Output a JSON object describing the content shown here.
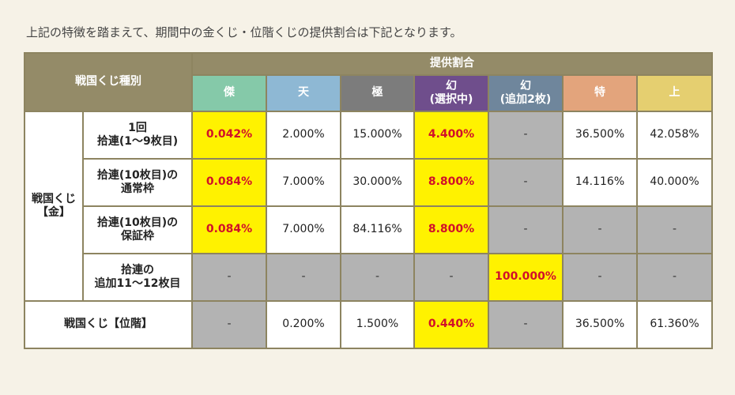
{
  "intro": "上記の特徴を踏まえて、期間中の金くじ・位階くじの提供割合は下記となります。",
  "header": {
    "type_label": "戦国くじ種別",
    "rate_label": "提供割合",
    "ranks": [
      {
        "label": "傑",
        "color": "#85c9a9"
      },
      {
        "label": "天",
        "color": "#8eb8d4"
      },
      {
        "label": "極",
        "color": "#7c7c7c"
      },
      {
        "label": "幻\n(選択中)",
        "color": "#6f4e8c"
      },
      {
        "label": "幻\n(追加2枚)",
        "color": "#6f869c"
      },
      {
        "label": "特",
        "color": "#e3a47c"
      },
      {
        "label": "上",
        "color": "#e5cf70"
      }
    ]
  },
  "gold": {
    "label": "戦国くじ\n【金】",
    "rows": [
      {
        "label": "1回\n拾連(1〜9枚目)",
        "cells": [
          {
            "v": "0.042%",
            "s": "yel"
          },
          {
            "v": "2.000%",
            "s": ""
          },
          {
            "v": "15.000%",
            "s": ""
          },
          {
            "v": "4.400%",
            "s": "yel"
          },
          {
            "v": "-",
            "s": "gry"
          },
          {
            "v": "36.500%",
            "s": ""
          },
          {
            "v": "42.058%",
            "s": ""
          }
        ]
      },
      {
        "label": "拾連(10枚目)の\n通常枠",
        "cells": [
          {
            "v": "0.084%",
            "s": "yel"
          },
          {
            "v": "7.000%",
            "s": ""
          },
          {
            "v": "30.000%",
            "s": ""
          },
          {
            "v": "8.800%",
            "s": "yel"
          },
          {
            "v": "-",
            "s": "gry"
          },
          {
            "v": "14.116%",
            "s": ""
          },
          {
            "v": "40.000%",
            "s": ""
          }
        ]
      },
      {
        "label": "拾連(10枚目)の\n保証枠",
        "cells": [
          {
            "v": "0.084%",
            "s": "yel"
          },
          {
            "v": "7.000%",
            "s": ""
          },
          {
            "v": "84.116%",
            "s": ""
          },
          {
            "v": "8.800%",
            "s": "yel"
          },
          {
            "v": "-",
            "s": "gry"
          },
          {
            "v": "-",
            "s": "gry"
          },
          {
            "v": "-",
            "s": "gry"
          }
        ]
      },
      {
        "label": "拾連の\n追加11〜12枚目",
        "cells": [
          {
            "v": "-",
            "s": "gry"
          },
          {
            "v": "-",
            "s": "gry"
          },
          {
            "v": "-",
            "s": "gry"
          },
          {
            "v": "-",
            "s": "gry"
          },
          {
            "v": "100.000%",
            "s": "yel"
          },
          {
            "v": "-",
            "s": "gry"
          },
          {
            "v": "-",
            "s": "gry"
          }
        ]
      }
    ]
  },
  "rank_lottery": {
    "label": "戦国くじ【位階】",
    "cells": [
      {
        "v": "-",
        "s": "gry"
      },
      {
        "v": "0.200%",
        "s": ""
      },
      {
        "v": "1.500%",
        "s": ""
      },
      {
        "v": "0.440%",
        "s": "yel"
      },
      {
        "v": "-",
        "s": "gry"
      },
      {
        "v": "36.500%",
        "s": ""
      },
      {
        "v": "61.360%",
        "s": ""
      }
    ]
  }
}
